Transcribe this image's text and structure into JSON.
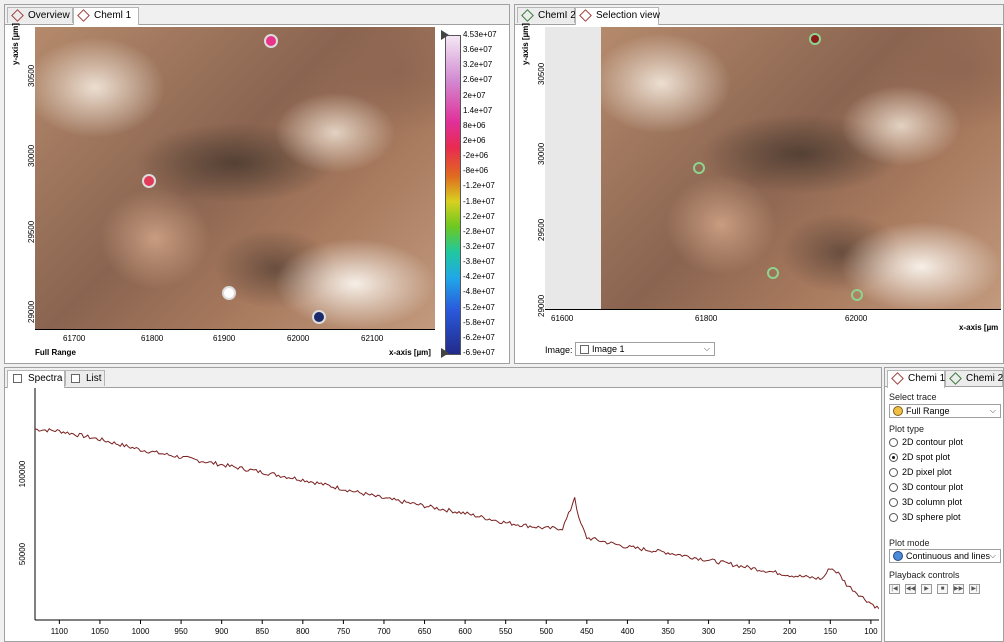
{
  "left_panel": {
    "tabs": [
      {
        "label": "Overview"
      },
      {
        "label": "Cheml 1"
      }
    ],
    "x_ticks": [
      "61700",
      "61800",
      "61900",
      "62000",
      "62100"
    ],
    "x_axis_label": "x-axis [µm]",
    "y_ticks": [
      "30500",
      "30000",
      "29500",
      "29000"
    ],
    "y_axis_label": "y-axis [µm]",
    "trace_label": "Full Range",
    "colorbar_labels": [
      "4.53e+07",
      "3.6e+07",
      "3.2e+07",
      "2.6e+07",
      "2e+07",
      "1.4e+07",
      "8e+06",
      "2e+06",
      "-2e+06",
      "-8e+06",
      "-1.2e+07",
      "-1.8e+07",
      "-2.2e+07",
      "-2.8e+07",
      "-3.2e+07",
      "-3.8e+07",
      "-4.2e+07",
      "-4.8e+07",
      "-5.2e+07",
      "-5.8e+07",
      "-6.2e+07",
      "-6.9e+07"
    ],
    "spot_colors": [
      "#e8358a",
      "#e33a5a",
      "#ffffff",
      "#1a2a6a"
    ]
  },
  "right_panel": {
    "tabs": [
      {
        "label": "ChemI 2"
      },
      {
        "label": "Selection view"
      }
    ],
    "x_ticks": [
      "61600",
      "61800",
      "62000"
    ],
    "x_axis_label": "x-axis [µm",
    "y_ticks": [
      "30500",
      "30000",
      "29500",
      "29000"
    ],
    "y_axis_label": "y-axis [µm]",
    "image_label": "Image:",
    "image_value": "Image 1"
  },
  "spectra_panel": {
    "tabs": [
      {
        "label": "Spectra"
      },
      {
        "label": "List"
      }
    ],
    "y_ticks": [
      "100000",
      "50000"
    ],
    "x_ticks": [
      "1100",
      "1050",
      "1000",
      "950",
      "900",
      "850",
      "800",
      "750",
      "700",
      "650",
      "600",
      "550",
      "500",
      "450",
      "400",
      "350",
      "300",
      "250",
      "200",
      "150",
      "100"
    ],
    "line_color": "#7a2020"
  },
  "chart_data": {
    "type": "line",
    "x": [
      1130,
      1100,
      1050,
      1000,
      950,
      900,
      850,
      800,
      750,
      700,
      650,
      600,
      550,
      500,
      480,
      470,
      465,
      460,
      450,
      400,
      350,
      300,
      250,
      200,
      160,
      150,
      140,
      130,
      110,
      100,
      90
    ],
    "values": [
      123000,
      122000,
      117500,
      112000,
      108000,
      104000,
      100000,
      96000,
      91000,
      86000,
      82000,
      78000,
      73000,
      70000,
      70000,
      80000,
      87000,
      75000,
      65000,
      60000,
      57000,
      53000,
      49000,
      45000,
      43000,
      49000,
      46000,
      40000,
      33000,
      30000,
      27000
    ],
    "xlabel": "",
    "ylabel": "",
    "xlim": [
      1130,
      90
    ],
    "ylim": [
      21000,
      145000
    ],
    "grid": false
  },
  "side_panel": {
    "tabs": [
      {
        "label": "Chemi 1"
      },
      {
        "label": "Chemi 2"
      }
    ],
    "select_trace_label": "Select trace",
    "select_trace_value": "Full Range",
    "plot_type_label": "Plot type",
    "plot_types": [
      {
        "label": "2D contour plot",
        "selected": false
      },
      {
        "label": "2D spot plot",
        "selected": true
      },
      {
        "label": "2D pixel plot",
        "selected": false
      },
      {
        "label": "3D contour plot",
        "selected": false
      },
      {
        "label": "3D column plot",
        "selected": false
      },
      {
        "label": "3D sphere plot",
        "selected": false
      }
    ],
    "plot_mode_label": "Plot mode",
    "plot_mode_value": "Continuous and lines",
    "playback_label": "Playback controls",
    "playback_buttons": [
      "|◀",
      "◀◀",
      "▶",
      "■",
      "▶▶",
      "▶|"
    ]
  }
}
